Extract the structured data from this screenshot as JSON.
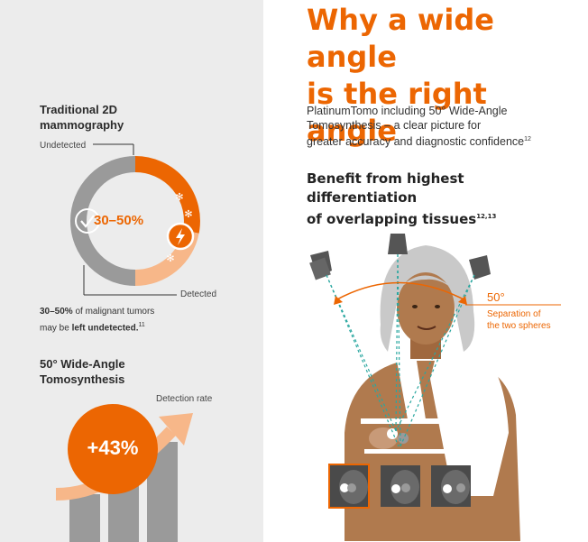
{
  "colors": {
    "accent": "#ec6602",
    "accent_light": "#f7b789",
    "gray": "#9a9a9a",
    "panel": "#ececec"
  },
  "left": {
    "section1": {
      "title_line1": "Traditional 2D",
      "title_line2": "mammography",
      "undetected_label": "Undetected",
      "detected_label": "Detected",
      "ring_value": "30–50%",
      "note_bold1": "30–50%",
      "note_text1": " of malignant tumors",
      "note_text2": "may be ",
      "note_bold2": "left undetected.",
      "note_sup": "11"
    },
    "section2": {
      "title_line1": "50° Wide-Angle",
      "title_line2": "Tomosynthesis",
      "detection_label": "Detection rate",
      "increase": "+43%"
    }
  },
  "right": {
    "title_line1": "Why a wide angle",
    "title_line2": "is the right angle",
    "intro_line1": "PlatinumTomo including 50° Wide-Angle",
    "intro_line2": "Tomosynthesis – a clear picture for",
    "intro_line3": "greater accuracy and diagnostic confidence",
    "intro_sup": "12",
    "benefit_line1": "Benefit from highest differentiation",
    "benefit_line2": "of overlapping tissues",
    "benefit_sup": "12,13",
    "angle_value": "50°",
    "angle_desc_line1": "Separation of",
    "angle_desc_line2": "the two spheres"
  }
}
